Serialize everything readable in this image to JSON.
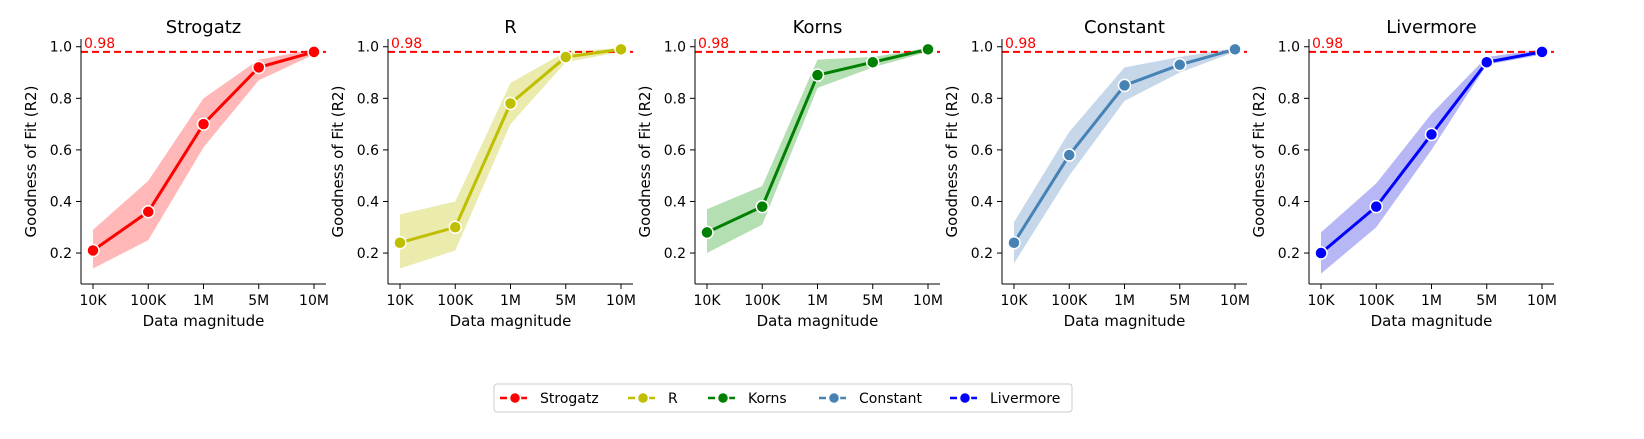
{
  "ref_line": {
    "value": 0.98,
    "label": "0.98",
    "color": "#ff0000"
  },
  "legend": [
    {
      "label": "Strogatz",
      "color": "#ff0000"
    },
    {
      "label": "R",
      "color": "#bfbf00"
    },
    {
      "label": "Korns",
      "color": "#008000"
    },
    {
      "label": "Constant",
      "color": "#4682b4"
    },
    {
      "label": "Livermore",
      "color": "#0000ff"
    }
  ],
  "chart_data": [
    {
      "type": "line",
      "title": "Strogatz",
      "xlabel": "Data magnitude",
      "ylabel": "Goodness of Fit (R2)",
      "categories": [
        "10K",
        "100K",
        "1M",
        "5M",
        "10M"
      ],
      "ylim": [
        0.08,
        1.03
      ],
      "yticks": [
        "0.2",
        "0.4",
        "0.6",
        "0.8",
        "1.0"
      ],
      "color": "#ff0000",
      "fill": "#ffaaaa",
      "values": [
        0.21,
        0.36,
        0.7,
        0.92,
        0.98
      ],
      "lower": [
        0.14,
        0.25,
        0.61,
        0.87,
        0.97
      ],
      "upper": [
        0.29,
        0.48,
        0.8,
        0.95,
        0.99
      ]
    },
    {
      "type": "line",
      "title": "R",
      "xlabel": "Data magnitude",
      "ylabel": "Goodness of Fit (R2)",
      "categories": [
        "10K",
        "100K",
        "1M",
        "5M",
        "10M"
      ],
      "ylim": [
        0.08,
        1.03
      ],
      "yticks": [
        "0.2",
        "0.4",
        "0.6",
        "0.8",
        "1.0"
      ],
      "color": "#bfbf00",
      "fill": "#e8e8a0",
      "values": [
        0.24,
        0.3,
        0.78,
        0.96,
        0.99
      ],
      "lower": [
        0.14,
        0.21,
        0.7,
        0.94,
        0.98
      ],
      "upper": [
        0.35,
        0.4,
        0.86,
        0.98,
        0.995
      ]
    },
    {
      "type": "line",
      "title": "Korns",
      "xlabel": "Data magnitude",
      "ylabel": "Goodness of Fit (R2)",
      "categories": [
        "10K",
        "100K",
        "1M",
        "5M",
        "10M"
      ],
      "ylim": [
        0.08,
        1.03
      ],
      "yticks": [
        "0.2",
        "0.4",
        "0.6",
        "0.8",
        "1.0"
      ],
      "color": "#008000",
      "fill": "#a6d9a6",
      "values": [
        0.28,
        0.38,
        0.89,
        0.94,
        0.99
      ],
      "lower": [
        0.2,
        0.31,
        0.84,
        0.92,
        0.98
      ],
      "upper": [
        0.37,
        0.46,
        0.95,
        0.96,
        0.995
      ]
    },
    {
      "type": "line",
      "title": "Constant",
      "xlabel": "Data magnitude",
      "ylabel": "Goodness of Fit (R2)",
      "categories": [
        "10K",
        "100K",
        "1M",
        "5M",
        "10M"
      ],
      "ylim": [
        0.08,
        1.03
      ],
      "yticks": [
        "0.2",
        "0.4",
        "0.6",
        "0.8",
        "1.0"
      ],
      "color": "#4682b4",
      "fill": "#bcd0e6",
      "values": [
        0.24,
        0.58,
        0.85,
        0.93,
        0.99
      ],
      "lower": [
        0.16,
        0.5,
        0.79,
        0.9,
        0.98
      ],
      "upper": [
        0.32,
        0.67,
        0.92,
        0.96,
        0.995
      ]
    },
    {
      "type": "line",
      "title": "Livermore",
      "xlabel": "Data magnitude",
      "ylabel": "Goodness of Fit (R2)",
      "categories": [
        "10K",
        "100K",
        "1M",
        "5M",
        "10M"
      ],
      "ylim": [
        0.08,
        1.03
      ],
      "yticks": [
        "0.2",
        "0.4",
        "0.6",
        "0.8",
        "1.0"
      ],
      "color": "#0000ff",
      "fill": "#aaaaf5",
      "values": [
        0.2,
        0.38,
        0.66,
        0.94,
        0.98
      ],
      "lower": [
        0.12,
        0.3,
        0.6,
        0.93,
        0.97
      ],
      "upper": [
        0.28,
        0.47,
        0.74,
        0.96,
        0.99
      ]
    }
  ]
}
